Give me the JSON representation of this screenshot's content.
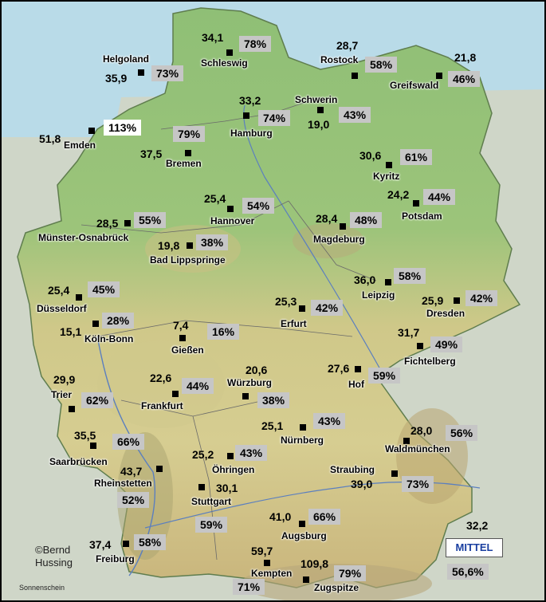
{
  "stations": [
    {
      "id": "schleswig",
      "name": "Schleswig",
      "value": "34,1",
      "pct": "78%"
    },
    {
      "id": "helgoland",
      "name": "Helgoland",
      "value": "35,9",
      "pct": "73%"
    },
    {
      "id": "rostock",
      "name": "Rostock",
      "value": "28,7",
      "pct": "58%"
    },
    {
      "id": "greifswald",
      "name": "Greifswald",
      "value": "21,8",
      "pct": "46%"
    },
    {
      "id": "emden",
      "name": "Emden",
      "value": "51,8",
      "pct": "113%"
    },
    {
      "id": "hamburg",
      "name": "Hamburg",
      "value": "33,2",
      "pct": "74%"
    },
    {
      "id": "schwerin",
      "name": "Schwerin",
      "value": "19,0",
      "pct": "43%"
    },
    {
      "id": "bremen",
      "name": "Bremen",
      "value": "37,5",
      "pct": "79%"
    },
    {
      "id": "kyritz",
      "name": "Kyritz",
      "value": "30,6",
      "pct": "61%"
    },
    {
      "id": "potsdam",
      "name": "Potsdam",
      "value": "24,2",
      "pct": "44%"
    },
    {
      "id": "hannover",
      "name": "Hannover",
      "value": "25,4",
      "pct": "54%"
    },
    {
      "id": "muenster",
      "name": "Münster-Osnabrück",
      "value": "28,5",
      "pct": "55%"
    },
    {
      "id": "magdeburg",
      "name": "Magdeburg",
      "value": "28,4",
      "pct": "48%"
    },
    {
      "id": "badlipp",
      "name": "Bad Lippspringe",
      "value": "19,8",
      "pct": "38%"
    },
    {
      "id": "leipzig",
      "name": "Leipzig",
      "value": "36,0",
      "pct": "58%"
    },
    {
      "id": "duesseldorf",
      "name": "Düsseldorf",
      "value": "25,4",
      "pct": "45%"
    },
    {
      "id": "erfurt",
      "name": "Erfurt",
      "value": "25,3",
      "pct": "42%"
    },
    {
      "id": "dresden",
      "name": "Dresden",
      "value": "25,9",
      "pct": "42%"
    },
    {
      "id": "koelnbonn",
      "name": "Köln-Bonn",
      "value": "15,1",
      "pct": "28%"
    },
    {
      "id": "giessen",
      "name": "Gießen",
      "value": "7,4",
      "pct": "16%"
    },
    {
      "id": "fichtelberg",
      "name": "Fichtelberg",
      "value": "31,7",
      "pct": "49%"
    },
    {
      "id": "hof",
      "name": "Hof",
      "value": "27,6",
      "pct": "59%"
    },
    {
      "id": "trier",
      "name": "Trier",
      "value": "29,9",
      "pct": "62%"
    },
    {
      "id": "frankfurt",
      "name": "Frankfurt",
      "value": "22,6",
      "pct": "44%"
    },
    {
      "id": "wuerzburg",
      "name": "Würzburg",
      "value": "20,6",
      "pct": "38%"
    },
    {
      "id": "nuernberg",
      "name": "Nürnberg",
      "value": "25,1",
      "pct": "43%"
    },
    {
      "id": "saarbruecken",
      "name": "Saarbrücken",
      "value": "35,5",
      "pct": "66%"
    },
    {
      "id": "waldmuenchen",
      "name": "Waldmünchen",
      "value": "28,0",
      "pct": "56%"
    },
    {
      "id": "oehringen",
      "name": "Öhringen",
      "value": "25,2",
      "pct": "43%"
    },
    {
      "id": "rheinstetten",
      "name": "Rheinstetten",
      "value": "43,7",
      "pct": "52%"
    },
    {
      "id": "straubing",
      "name": "Straubing",
      "value": "39,0",
      "pct": "73%"
    },
    {
      "id": "stuttgart",
      "name": "Stuttgart",
      "value": "30,1",
      "pct": "59%"
    },
    {
      "id": "augsburg",
      "name": "Augsburg",
      "value": "41,0",
      "pct": "66%"
    },
    {
      "id": "freiburg",
      "name": "Freiburg",
      "value": "37,4",
      "pct": "58%"
    },
    {
      "id": "kempten",
      "name": "Kempten",
      "value": "59,7",
      "pct": "71%"
    },
    {
      "id": "zugspitze",
      "name": "Zugspitze",
      "value": "109,8",
      "pct": "79%"
    }
  ],
  "mittel": {
    "label": "MITTEL",
    "value": "32,2",
    "pct": "56,6%"
  },
  "copyright": "©Bernd\nHussing",
  "caption": "Sonnenschein",
  "colors": {
    "sea": "#b9dbe8",
    "lowland": "#8fbf76",
    "upland": "#d8cf92",
    "mountain": "#b9a56e",
    "pct_box": "#c6c6c6",
    "pct_highlight": "#ffffff"
  }
}
